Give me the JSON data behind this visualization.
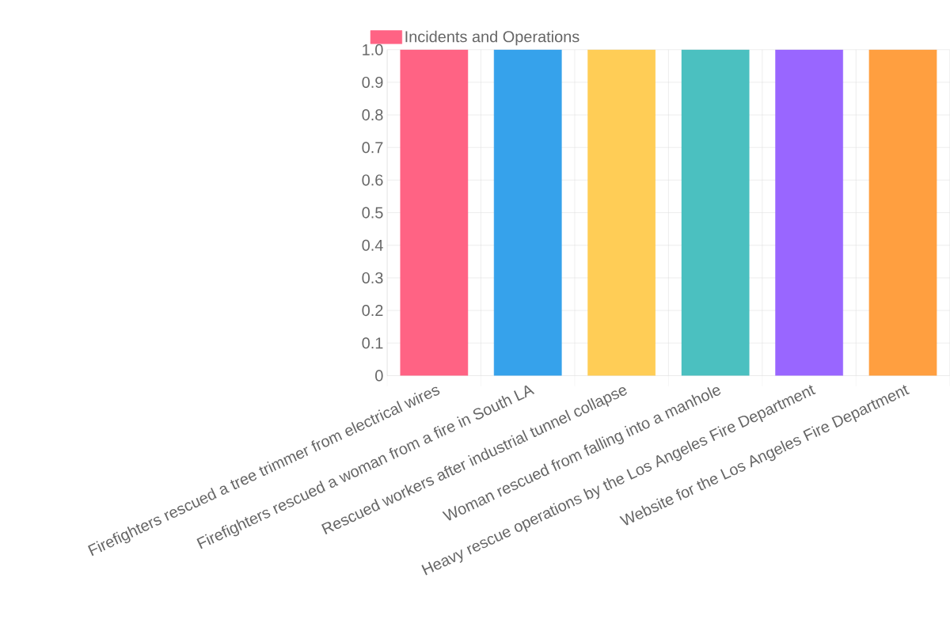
{
  "chart_data": {
    "type": "bar",
    "categories": [
      "Firefighters rescued a tree trimmer from electrical wires",
      "Firefighters rescued a woman from a fire in South LA",
      "Rescued workers after industrial tunnel collapse",
      "Woman rescued from falling into a manhole",
      "Heavy rescue operations by the Los Angeles Fire Department",
      "Website for the Los Angeles Fire Department"
    ],
    "series": [
      {
        "name": "Incidents and Operations",
        "values": [
          1.0,
          1.0,
          1.0,
          1.0,
          1.0,
          1.0
        ],
        "colors": [
          "#ff6384",
          "#36a2eb",
          "#ffcd56",
          "#4bc0c0",
          "#9966ff",
          "#ff9f40"
        ]
      }
    ],
    "ylim": [
      0,
      1
    ],
    "yticks": [
      0,
      0.1,
      0.2,
      0.3,
      0.4,
      0.5,
      0.6,
      0.7,
      0.8,
      0.9,
      {
        "value": 1,
        "label": "1.0"
      }
    ],
    "grid": true,
    "legend": "top"
  }
}
